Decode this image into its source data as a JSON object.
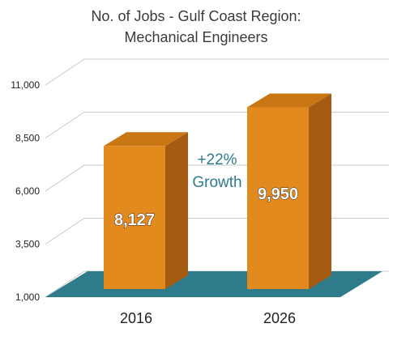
{
  "chart_data": {
    "type": "bar",
    "title_lines": [
      "No. of Jobs - Gulf Coast Region:",
      "Mechanical Engineers"
    ],
    "categories": [
      "2016",
      "2026"
    ],
    "values": [
      8127,
      9950
    ],
    "value_labels": [
      "8,127",
      "9,950"
    ],
    "ylim": [
      1000,
      11000
    ],
    "y_ticks": [
      1000,
      3500,
      6000,
      8500,
      11000
    ],
    "y_tick_labels": [
      "1,000",
      "3,500",
      "6,000",
      "8,500",
      "11,000"
    ],
    "annotation": [
      "+22%",
      "Growth"
    ],
    "grid": true,
    "legend": "none",
    "colors": {
      "bar_front": "#E38A1E",
      "bar_side": "#A55C12",
      "bar_top": "#C97714",
      "floor": "#2E7B8C",
      "annotation": "#2E7B8C",
      "grid": "#C9C9C9"
    }
  }
}
